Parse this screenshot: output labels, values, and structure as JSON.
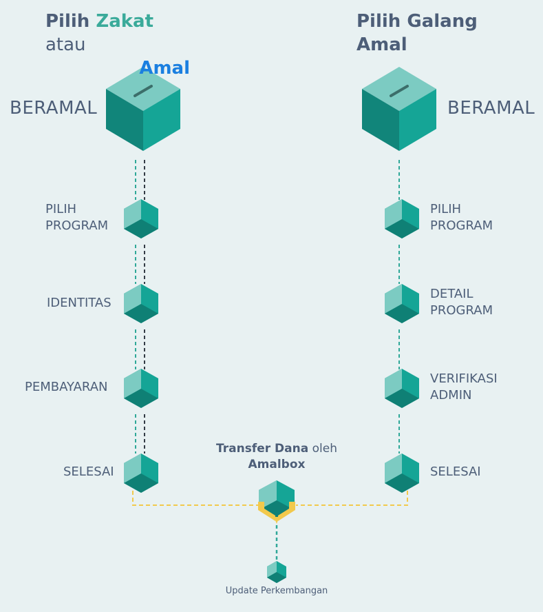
{
  "left": {
    "title_prefix": "Pilih ",
    "title_highlight1": "Zakat",
    "title_mid": " atau",
    "title_highlight2": "Amal",
    "beramal": "BERAMAL",
    "steps": [
      "PILIH\nPROGRAM",
      "IDENTITAS",
      "PEMBAYARAN",
      "SELESAI"
    ]
  },
  "right": {
    "title_line1": "Pilih Galang",
    "title_line2": "Amal",
    "beramal": "BERAMAL",
    "steps": [
      "PILIH\nPROGRAM",
      "DETAIL\nPROGRAM",
      "VERIFIKASI\nADMIN",
      "SELESAI"
    ]
  },
  "transfer": {
    "bold1": "Transfer Dana",
    "normal": " oleh",
    "bold2": "Amalbox"
  },
  "update": "Update Perkembangan",
  "colors": {
    "background": "#e8f1f2",
    "text": "#4d5e78",
    "teal_accent": "#3aaa9a",
    "blue_accent": "#1a7fe0",
    "cube_top": "#5cc4b6",
    "cube_left": "#7ccbc2",
    "cube_right": "#15a596",
    "cube_dark": "#0f8075",
    "dashed_teal": "#2fa898",
    "dashed_dark": "#333b45",
    "dashed_yellow": "#f2c94c"
  }
}
